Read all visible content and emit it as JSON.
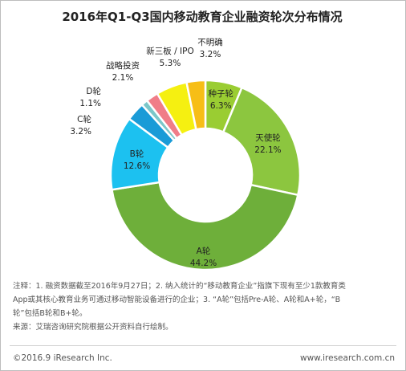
{
  "chart_data": {
    "type": "pie",
    "title": "2016年Q1-Q3国内移动教育企业融资轮次分布情况",
    "slices": [
      {
        "label": "种子轮",
        "value": 6.3,
        "display": "6.3%",
        "color": "#9ACD32"
      },
      {
        "label": "天使轮",
        "value": 22.1,
        "display": "22.1%",
        "color": "#8CC63F"
      },
      {
        "label": "A轮",
        "value": 44.2,
        "display": "44.2%",
        "color": "#6EAF3A"
      },
      {
        "label": "B轮",
        "value": 12.6,
        "display": "12.6%",
        "color": "#1CC1F0"
      },
      {
        "label": "C轮",
        "value": 3.2,
        "display": "3.2%",
        "color": "#1A9BD7"
      },
      {
        "label": "D轮",
        "value": 1.1,
        "display": "1.1%",
        "color": "#7CC7C9"
      },
      {
        "label": "战略投资",
        "value": 2.1,
        "display": "2.1%",
        "color": "#F07D88"
      },
      {
        "label": "新三板 / IPO",
        "value": 5.3,
        "display": "5.3%",
        "color": "#F5F011"
      },
      {
        "label": "不明确",
        "value": 3.2,
        "display": "3.2%",
        "color": "#F7BE16"
      }
    ]
  },
  "notes": {
    "line1": "注释：1. 融资数据截至2016年9月27日；2. 纳入统计的“移动教育企业”指旗下现有至少1款教育类",
    "line2": "App或其核心教育业务可通过移动智能设备进行的企业；3. “A轮”包括Pre-A轮、A轮和A+轮，“B",
    "line3": "轮”包括B轮和B+轮。",
    "source": "来源：艾瑞咨询研究院根据公开资料自行绘制。"
  },
  "footer": {
    "copyright": "©2016.9 iResearch Inc.",
    "website": "www.iresearch.com.cn"
  }
}
